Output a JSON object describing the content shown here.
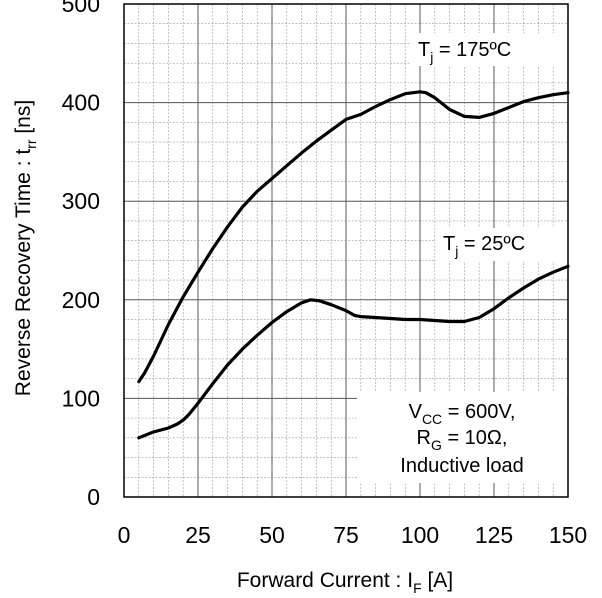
{
  "chart_data": {
    "type": "line",
    "xlabel": {
      "main": "Forward Current : I",
      "sub": "F",
      "tail": " [A]"
    },
    "ylabel": {
      "main": "Reverse Recovery Time : t",
      "sub": "rr",
      "tail": " [ns]"
    },
    "xlim": [
      0,
      150
    ],
    "ylim": [
      0,
      500
    ],
    "x_ticks": [
      0,
      25,
      50,
      75,
      100,
      125,
      150
    ],
    "y_ticks": [
      0,
      100,
      200,
      300,
      400,
      500
    ],
    "grid": true,
    "series": [
      {
        "name": "T_j = 175ºC",
        "label": {
          "main": "T",
          "sub": "j",
          "tail": " = 175ºC"
        },
        "x": [
          5,
          7,
          10,
          15,
          20,
          25,
          30,
          35,
          40,
          45,
          50,
          55,
          60,
          65,
          70,
          75,
          78,
          80,
          85,
          90,
          95,
          100,
          102,
          105,
          110,
          115,
          120,
          125,
          130,
          135,
          140,
          145,
          150
        ],
        "y": [
          117,
          126,
          143,
          175,
          203,
          228,
          252,
          274,
          294,
          310,
          323,
          336,
          349,
          361,
          372,
          383,
          386,
          388,
          396,
          403,
          409,
          411,
          410,
          405,
          393,
          386,
          385,
          389,
          395,
          401,
          405,
          408,
          410
        ]
      },
      {
        "name": "T_j = 25ºC",
        "label": {
          "main": "T",
          "sub": "j",
          "tail": " = 25ºC"
        },
        "x": [
          5,
          10,
          15,
          18,
          20,
          22,
          25,
          30,
          35,
          40,
          45,
          50,
          55,
          60,
          63,
          66,
          70,
          75,
          78,
          80,
          85,
          90,
          95,
          100,
          105,
          110,
          115,
          120,
          125,
          130,
          135,
          140,
          145,
          150
        ],
        "y": [
          60,
          66,
          70,
          74,
          78,
          84,
          95,
          115,
          134,
          150,
          164,
          177,
          188,
          197,
          200,
          199,
          195,
          189,
          184,
          183,
          182,
          181,
          180,
          180,
          179,
          178,
          178,
          182,
          191,
          202,
          212,
          221,
          228,
          234
        ]
      }
    ],
    "annotation": {
      "line1": {
        "main": "V",
        "sub": "CC",
        "tail": " = 600V,"
      },
      "line2": {
        "main": "R",
        "sub": "G",
        "tail": " = 10Ω,"
      },
      "line3": "Inductive load"
    }
  }
}
